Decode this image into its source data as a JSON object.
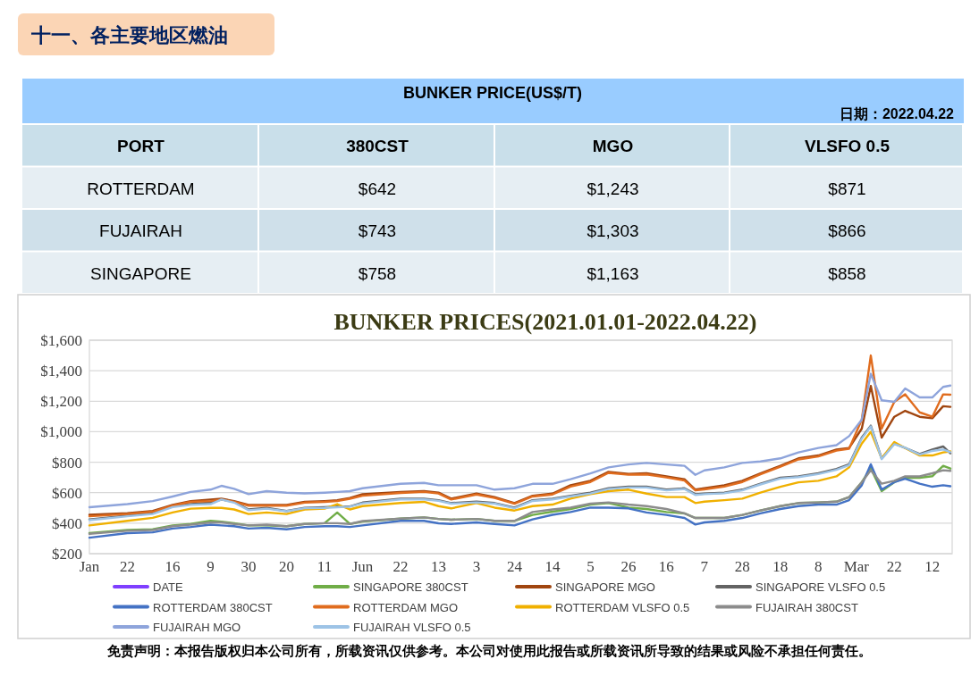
{
  "chart_data": [
    {
      "type": "other",
      "title": "十一、各主要地区燃油",
      "subtitle": "BUNKER PRICE(US$/T)",
      "annotations": [
        "日期：2022.04.22"
      ],
      "ylabel": "PORT",
      "categories": [
        "380CST",
        "MGO",
        "VLSFO 0.5"
      ],
      "y_categories": [
        "ROTTERDAM",
        "FUJAIRAH",
        "SINGAPORE"
      ],
      "cell_labels": [
        [
          "$642",
          "$1,243",
          "$871"
        ],
        [
          "$743",
          "$1,303",
          "$866"
        ],
        [
          "$758",
          "$1,163",
          "$858"
        ]
      ]
    },
    {
      "type": "line",
      "title": "BUNKER PRICES(2021.01.01-2022.04.22)",
      "x": [
        "2021-01-01",
        "2021-01-22",
        "2021-02-05",
        "2021-02-16",
        "2021-02-26",
        "2021-03-09",
        "2021-03-15",
        "2021-03-22",
        "2021-03-30",
        "2021-04-09",
        "2021-04-20",
        "2021-04-30",
        "2021-05-11",
        "2021-05-18",
        "2021-05-25",
        "2021-06-01",
        "2021-06-22",
        "2021-07-05",
        "2021-07-13",
        "2021-07-20",
        "2021-08-03",
        "2021-08-13",
        "2021-08-24",
        "2021-09-03",
        "2021-09-14",
        "2021-09-24",
        "2021-10-05",
        "2021-10-15",
        "2021-10-26",
        "2021-11-05",
        "2021-11-16",
        "2021-11-26",
        "2021-12-02",
        "2021-12-07",
        "2021-12-18",
        "2021-12-28",
        "2022-01-07",
        "2022-01-18",
        "2022-01-28",
        "2022-02-08",
        "2022-02-18",
        "2022-02-25",
        "2022-03-04",
        "2022-03-09",
        "2022-03-15",
        "2022-03-22",
        "2022-03-28",
        "2022-04-05",
        "2022-04-12",
        "2022-04-18",
        "2022-04-22"
      ],
      "series": [
        {
          "name": "DATE",
          "color": "#7f3fff",
          "values": [
            null,
            null,
            null,
            null,
            null,
            null,
            null,
            null,
            null,
            null,
            null,
            null,
            null,
            null,
            null,
            null,
            null,
            null,
            null,
            null,
            null,
            null,
            null,
            null,
            null,
            null,
            null,
            null,
            null,
            null,
            null,
            null,
            null,
            null,
            null,
            null,
            null,
            null,
            null,
            null,
            null,
            null,
            null,
            null,
            null,
            null,
            null,
            null,
            null,
            null,
            null
          ]
        },
        {
          "name": "SINGAPORE 380CST",
          "color": "#70ad47",
          "values": [
            335,
            355,
            360,
            385,
            395,
            415,
            410,
            400,
            385,
            385,
            380,
            395,
            400,
            470,
            395,
            410,
            430,
            438,
            428,
            423,
            428,
            415,
            415,
            454,
            475,
            493,
            522,
            532,
            502,
            493,
            473,
            464,
            434,
            434,
            434,
            454,
            483,
            512,
            532,
            536,
            541,
            571,
            669,
            760,
            610,
            669,
            698,
            698,
            708,
            776,
            758
          ]
        },
        {
          "name": "SINGAPORE MGO",
          "color": "#a0450f",
          "values": [
            455,
            465,
            480,
            520,
            545,
            555,
            560,
            545,
            520,
            520,
            520,
            540,
            545,
            550,
            565,
            590,
            604,
            610,
            600,
            561,
            594,
            571,
            532,
            580,
            594,
            649,
            678,
            737,
            723,
            727,
            707,
            688,
            620,
            629,
            649,
            678,
            727,
            776,
            825,
            844,
            883,
            893,
            1020,
            1300,
            961,
            1098,
            1137,
            1098,
            1088,
            1167,
            1163
          ]
        },
        {
          "name": "SINGAPORE VLSFO 0.5",
          "color": "#636363",
          "values": [
            425,
            450,
            465,
            510,
            525,
            535,
            555,
            540,
            490,
            500,
            480,
            500,
            505,
            510,
            510,
            535,
            561,
            561,
            551,
            532,
            541,
            532,
            502,
            551,
            561,
            580,
            600,
            629,
            639,
            639,
            620,
            629,
            590,
            594,
            600,
            620,
            659,
            698,
            707,
            727,
            756,
            786,
            961,
            1040,
            825,
            922,
            893,
            854,
            883,
            903,
            858
          ]
        },
        {
          "name": "ROTTERDAM 380CST",
          "color": "#4472c4",
          "values": [
            305,
            335,
            340,
            365,
            375,
            390,
            385,
            380,
            365,
            370,
            360,
            375,
            380,
            380,
            375,
            385,
            415,
            415,
            399,
            395,
            405,
            395,
            385,
            425,
            455,
            473,
            502,
            502,
            497,
            470,
            454,
            434,
            391,
            405,
            415,
            434,
            464,
            493,
            512,
            522,
            522,
            551,
            649,
            786,
            620,
            669,
            692,
            659,
            639,
            649,
            642
          ]
        },
        {
          "name": "ROTTERDAM MGO",
          "color": "#e06c1e",
          "values": [
            445,
            460,
            475,
            515,
            540,
            545,
            555,
            540,
            515,
            515,
            515,
            535,
            540,
            545,
            560,
            580,
            598,
            605,
            595,
            555,
            588,
            565,
            528,
            575,
            588,
            640,
            670,
            730,
            718,
            720,
            700,
            680,
            615,
            622,
            640,
            670,
            720,
            770,
            818,
            838,
            876,
            888,
            1079,
            1500,
            1020,
            1196,
            1245,
            1127,
            1098,
            1245,
            1243
          ]
        },
        {
          "name": "ROTTERDAM VLSFO 0.5",
          "color": "#f0b000",
          "values": [
            385,
            415,
            435,
            470,
            495,
            500,
            500,
            490,
            460,
            470,
            460,
            490,
            495,
            525,
            490,
            512,
            532,
            540,
            512,
            497,
            532,
            502,
            483,
            512,
            522,
            561,
            590,
            610,
            620,
            594,
            571,
            571,
            532,
            541,
            551,
            561,
            600,
            639,
            668,
            678,
            707,
            766,
            922,
            1000,
            825,
            932,
            893,
            844,
            844,
            864,
            871
          ]
        },
        {
          "name": "FUJAIRAH  380CST",
          "color": "#8c8c8c",
          "values": [
            330,
            350,
            355,
            380,
            390,
            405,
            405,
            395,
            385,
            390,
            380,
            395,
            400,
            400,
            395,
            414,
            430,
            438,
            428,
            423,
            428,
            415,
            415,
            473,
            490,
            502,
            528,
            536,
            522,
            512,
            493,
            464,
            434,
            434,
            434,
            454,
            483,
            512,
            532,
            536,
            541,
            571,
            669,
            747,
            659,
            678,
            707,
            707,
            727,
            747,
            743
          ]
        },
        {
          "name": "FUJAIRAH MGO",
          "color": "#8ea4db",
          "values": [
            505,
            525,
            545,
            575,
            605,
            620,
            645,
            625,
            590,
            610,
            600,
            595,
            600,
            605,
            610,
            629,
            658,
            664,
            649,
            649,
            649,
            620,
            629,
            658,
            658,
            688,
            727,
            766,
            785,
            795,
            785,
            776,
            717,
            746,
            766,
            795,
            805,
            825,
            864,
            893,
            912,
            971,
            1079,
            1380,
            1206,
            1196,
            1284,
            1225,
            1225,
            1294,
            1303
          ]
        },
        {
          "name": "FUJAIRAH VLSFO 0.5",
          "color": "#9dc3e6",
          "values": [
            420,
            445,
            460,
            505,
            520,
            525,
            555,
            535,
            485,
            495,
            478,
            498,
            500,
            505,
            508,
            530,
            556,
            556,
            546,
            528,
            536,
            528,
            498,
            546,
            556,
            575,
            595,
            624,
            634,
            634,
            615,
            624,
            585,
            590,
            596,
            615,
            654,
            693,
            702,
            722,
            750,
            780,
            955,
            1035,
            820,
            918,
            895,
            850,
            874,
            883,
            866
          ]
        }
      ],
      "xlim": [
        "2021-01-01",
        "2022-04-22"
      ],
      "xticks": [
        {
          "value": "2021-01-01",
          "label": "Jan"
        },
        {
          "value": "2021-01-22",
          "label": "22"
        },
        {
          "value": "2021-02-16",
          "label": "16"
        },
        {
          "value": "2021-03-09",
          "label": "9"
        },
        {
          "value": "2021-03-30",
          "label": "30"
        },
        {
          "value": "2021-04-20",
          "label": "20"
        },
        {
          "value": "2021-05-11",
          "label": "11"
        },
        {
          "value": "2021-06-01",
          "label": "Jun"
        },
        {
          "value": "2021-06-22",
          "label": "22"
        },
        {
          "value": "2021-07-13",
          "label": "13"
        },
        {
          "value": "2021-08-03",
          "label": "3"
        },
        {
          "value": "2021-08-24",
          "label": "24"
        },
        {
          "value": "2021-09-14",
          "label": "14"
        },
        {
          "value": "2021-10-05",
          "label": "5"
        },
        {
          "value": "2021-10-26",
          "label": "26"
        },
        {
          "value": "2021-11-16",
          "label": "16"
        },
        {
          "value": "2021-12-07",
          "label": "7"
        },
        {
          "value": "2021-12-28",
          "label": "28"
        },
        {
          "value": "2022-01-18",
          "label": "18"
        },
        {
          "value": "2022-02-08",
          "label": "8"
        },
        {
          "value": "2022-03-01",
          "label": "Mar"
        },
        {
          "value": "2022-03-22",
          "label": "22"
        },
        {
          "value": "2022-04-12",
          "label": "12"
        }
      ],
      "ylim": [
        200,
        1600
      ],
      "yticks": [
        {
          "value": 200,
          "label": "$200"
        },
        {
          "value": 400,
          "label": "$400"
        },
        {
          "value": 600,
          "label": "$600"
        },
        {
          "value": 800,
          "label": "$800"
        },
        {
          "value": 1000,
          "label": "$1,000"
        },
        {
          "value": 1200,
          "label": "$1,200"
        },
        {
          "value": 1400,
          "label": "$1,400"
        },
        {
          "value": 1600,
          "label": "$1,600"
        }
      ],
      "grid": "y",
      "legend": "bottom",
      "annotations": [
        "免责声明：本报告版权归本公司所有，所载资讯仅供参考。本公司对使用此报告或所载资讯所导致的结果或风险不承担任何责任。"
      ]
    }
  ]
}
